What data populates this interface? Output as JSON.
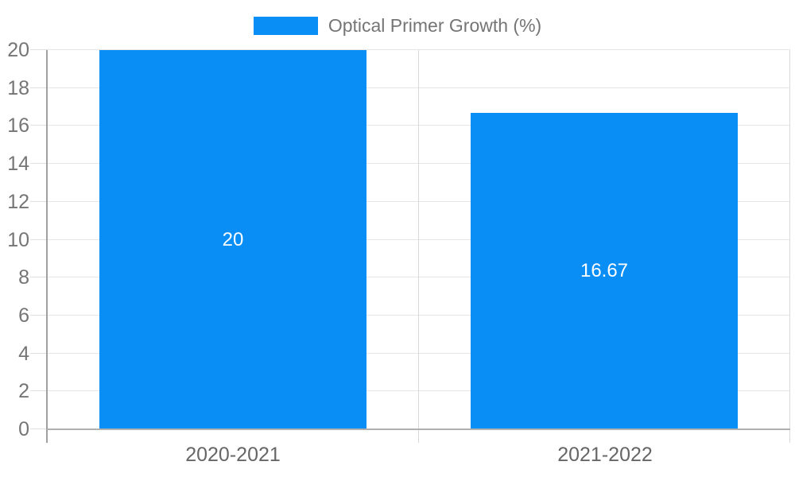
{
  "chart_data": {
    "type": "bar",
    "title": "",
    "legend": "Optical Primer Growth (%)",
    "legend_position": "top",
    "categories": [
      "2020-2021",
      "2021-2022"
    ],
    "series": [
      {
        "name": "Optical Primer Growth (%)",
        "values": [
          20,
          16.67
        ]
      }
    ],
    "bar_value_labels": [
      "20",
      "16.67"
    ],
    "xlabel": "",
    "ylabel": "",
    "ylim": [
      0,
      20
    ],
    "ytick_step": 2,
    "ytick_labels": [
      "0",
      "2",
      "4",
      "6",
      "8",
      "10",
      "12",
      "14",
      "16",
      "18",
      "20"
    ],
    "grid": true,
    "colors": {
      "bar": "#098ef6",
      "grid_line_h": "#e6e6e6",
      "grid_line_v": "#d9d9d9",
      "axis_line": "#a0a0a0",
      "baseline": "#b0b0b0",
      "y_tick": "#e0e0e0",
      "y_tick_label": "#757575",
      "x_tick_label": "#666666",
      "legend_text": "#757575",
      "bar_label_text": "#ffffff",
      "background": "#ffffff"
    }
  }
}
